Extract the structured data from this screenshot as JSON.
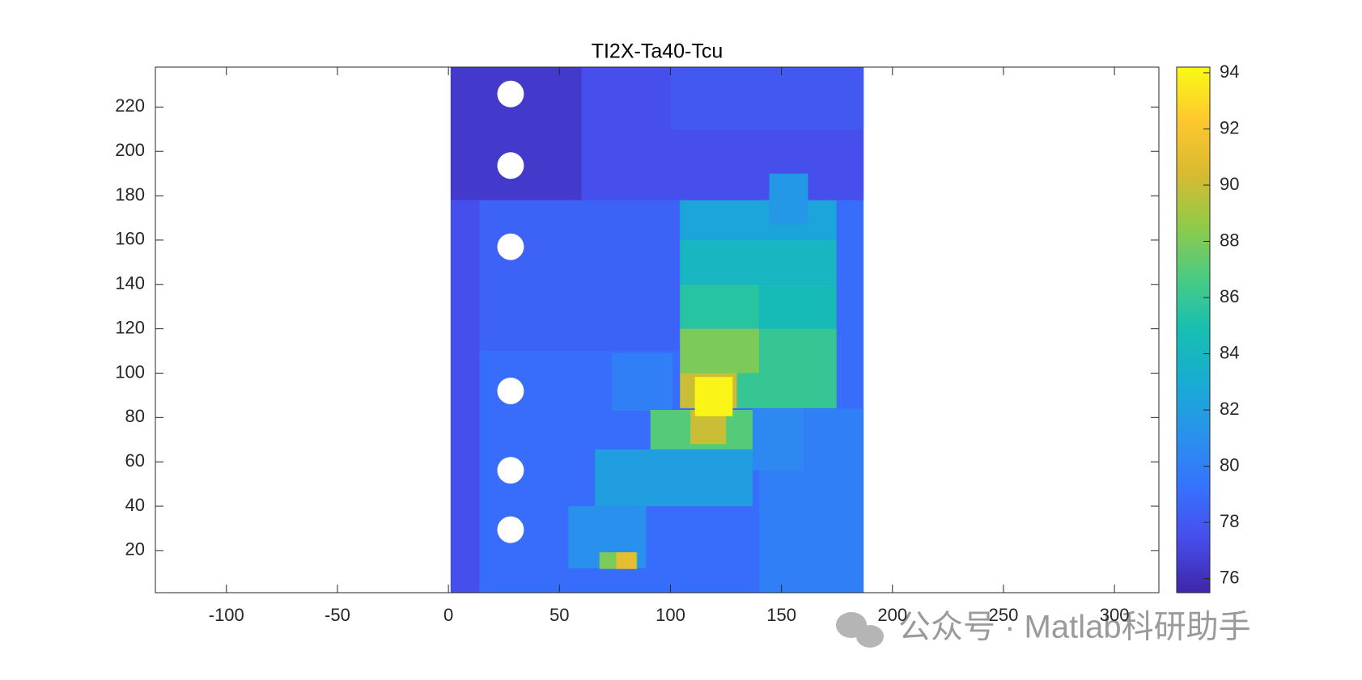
{
  "chart_data": {
    "type": "heatmap",
    "title": "TI2X-Ta40-Tcu",
    "xlim": [
      -132,
      320
    ],
    "ylim": [
      1,
      238
    ],
    "xticks": [
      -100,
      -50,
      0,
      50,
      100,
      150,
      200,
      250,
      300
    ],
    "yticks": [
      20,
      40,
      60,
      80,
      100,
      120,
      140,
      160,
      180,
      200,
      220
    ],
    "clim": [
      75.5,
      94.2
    ],
    "cticks": [
      76,
      78,
      80,
      82,
      84,
      86,
      88,
      90,
      92,
      94
    ],
    "colormap": "parula",
    "regions": [
      {
        "x": [
          1,
          187
        ],
        "y": [
          1,
          238
        ],
        "value": 79
      },
      {
        "x": [
          1,
          14
        ],
        "y": [
          1,
          178
        ],
        "value": 77.5
      },
      {
        "x": [
          1,
          60
        ],
        "y": [
          178,
          238
        ],
        "value": 76.5
      },
      {
        "x": [
          60,
          187
        ],
        "y": [
          178,
          238
        ],
        "value": 77.5
      },
      {
        "x": [
          100,
          187
        ],
        "y": [
          210,
          238
        ],
        "value": 78
      },
      {
        "x": [
          14,
          104
        ],
        "y": [
          110,
          178
        ],
        "value": 78.5
      },
      {
        "x": [
          140,
          187
        ],
        "y": [
          1,
          84
        ],
        "value": 80
      },
      {
        "x": [
          73.6,
          101
        ],
        "y": [
          83,
          109
        ],
        "value": 80
      },
      {
        "x": [
          104.3,
          174.8
        ],
        "y": [
          160,
          178
        ],
        "value": 82.5
      },
      {
        "x": [
          104.3,
          174.8
        ],
        "y": [
          140,
          160
        ],
        "value": 84
      },
      {
        "x": [
          104.3,
          140
        ],
        "y": [
          120,
          140
        ],
        "value": 85.5
      },
      {
        "x": [
          140,
          174.8
        ],
        "y": [
          120,
          140
        ],
        "value": 84.5
      },
      {
        "x": [
          104.3,
          140
        ],
        "y": [
          100,
          120
        ],
        "value": 88
      },
      {
        "x": [
          140,
          174.8
        ],
        "y": [
          100,
          120
        ],
        "value": 86
      },
      {
        "x": [
          104.3,
          130
        ],
        "y": [
          84.2,
          100
        ],
        "value": 90
      },
      {
        "x": [
          130,
          174.8
        ],
        "y": [
          84.2,
          100
        ],
        "value": 86
      },
      {
        "x": [
          144.5,
          162
        ],
        "y": [
          167,
          190
        ],
        "value": 81.5
      },
      {
        "x": [
          137,
          160
        ],
        "y": [
          56,
          84
        ],
        "value": 80.5
      },
      {
        "x": [
          66,
          137
        ],
        "y": [
          40,
          65.6
        ],
        "value": 82
      },
      {
        "x": [
          91,
          137
        ],
        "y": [
          65.6,
          83.4
        ],
        "value": 87
      },
      {
        "x": [
          109,
          125
        ],
        "y": [
          68,
          83.4
        ],
        "value": 90
      },
      {
        "x": [
          111,
          128
        ],
        "y": [
          80.6,
          98.3
        ],
        "value": 94
      },
      {
        "x": [
          54,
          89
        ],
        "y": [
          12,
          40
        ],
        "value": 81
      },
      {
        "x": [
          68,
          85
        ],
        "y": [
          11.7,
          19.2
        ],
        "value": 88
      },
      {
        "x": [
          75.6,
          84.6
        ],
        "y": [
          11.7,
          19.2
        ],
        "value": 91
      }
    ],
    "holes": [
      {
        "x": 28,
        "y": 225.9,
        "r": 6
      },
      {
        "x": 28,
        "y": 193.6,
        "r": 6
      },
      {
        "x": 28,
        "y": 157,
        "r": 6
      },
      {
        "x": 28,
        "y": 92,
        "r": 6
      },
      {
        "x": 28,
        "y": 56.2,
        "r": 6
      },
      {
        "x": 28,
        "y": 29.4,
        "r": 6
      }
    ],
    "watermark": "公众号 · Matlab科研助手"
  }
}
